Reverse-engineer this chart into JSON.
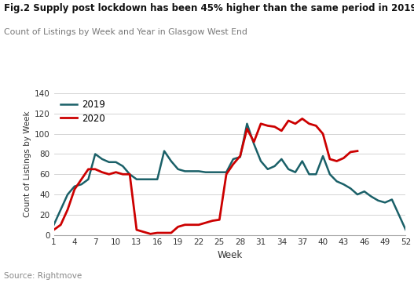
{
  "title": "Fig.2 Supply post lockdown has been 45% higher than the same period in 2019",
  "subtitle": "Count of Listings by Week and Year in Glasgow West End",
  "source": "Source: Rightmove",
  "xlabel": "Week",
  "ylabel": "Count of Listings by Week",
  "ylim": [
    0,
    140
  ],
  "yticks": [
    0,
    20,
    40,
    60,
    80,
    100,
    120,
    140
  ],
  "xticks": [
    1,
    4,
    7,
    10,
    13,
    16,
    19,
    22,
    25,
    28,
    31,
    34,
    37,
    40,
    43,
    46,
    49,
    52
  ],
  "color_2019": "#1a6068",
  "color_2020": "#cc0000",
  "legend_labels": [
    "2019",
    "2020"
  ],
  "weeks": [
    1,
    2,
    3,
    4,
    5,
    6,
    7,
    8,
    9,
    10,
    11,
    12,
    13,
    14,
    15,
    16,
    17,
    18,
    19,
    20,
    21,
    22,
    23,
    24,
    25,
    26,
    27,
    28,
    29,
    30,
    31,
    32,
    33,
    34,
    35,
    36,
    37,
    38,
    39,
    40,
    41,
    42,
    43,
    44,
    45
  ],
  "data_2019": [
    10,
    25,
    40,
    48,
    50,
    55,
    80,
    75,
    72,
    72,
    68,
    60,
    55,
    55,
    55,
    55,
    83,
    73,
    65,
    63,
    63,
    63,
    62,
    62,
    62,
    62,
    75,
    77,
    110,
    90,
    73,
    65,
    68,
    75,
    65,
    62,
    73,
    60,
    60,
    78,
    60,
    53,
    50,
    46,
    40,
    43,
    38,
    34,
    32,
    35,
    20,
    5
  ],
  "data_2020": [
    5,
    10,
    25,
    45,
    55,
    65,
    65,
    62,
    60,
    62,
    60,
    60,
    5,
    3,
    1,
    2,
    2,
    2,
    8,
    10,
    10,
    10,
    12,
    14,
    15,
    60,
    70,
    78,
    105,
    92,
    110,
    108,
    107,
    103,
    113,
    110,
    115,
    110,
    108,
    100,
    75,
    73,
    76,
    82,
    83
  ],
  "weeks_full": [
    1,
    2,
    3,
    4,
    5,
    6,
    7,
    8,
    9,
    10,
    11,
    12,
    13,
    14,
    15,
    16,
    17,
    18,
    19,
    20,
    21,
    22,
    23,
    24,
    25,
    26,
    27,
    28,
    29,
    30,
    31,
    32,
    33,
    34,
    35,
    36,
    37,
    38,
    39,
    40,
    41,
    42,
    43,
    44,
    45,
    46,
    47,
    48,
    49,
    50,
    51,
    52
  ]
}
